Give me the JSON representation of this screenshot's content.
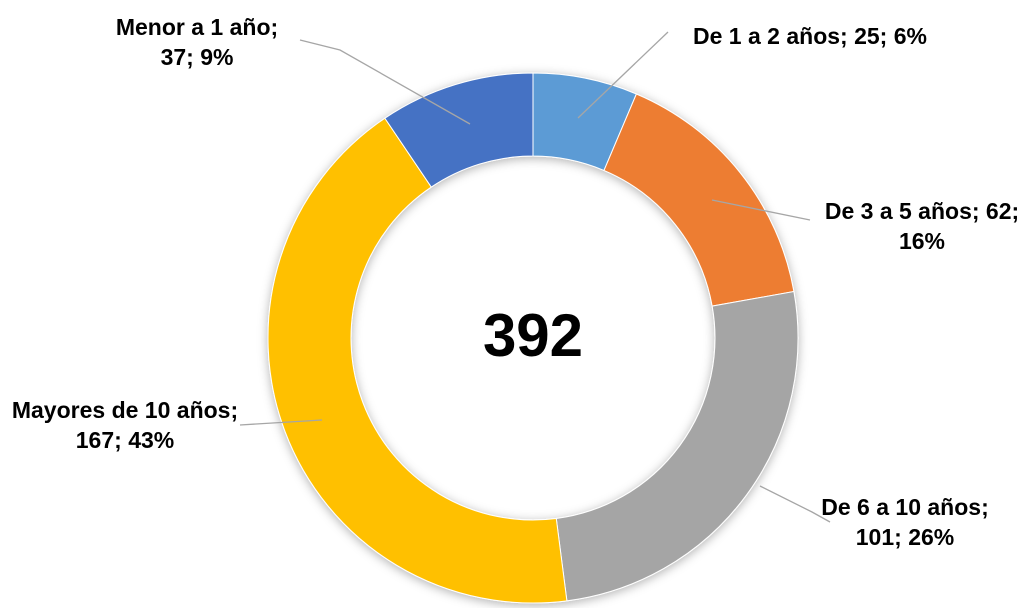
{
  "chart_data": {
    "type": "donut",
    "categories": [
      "De 1 a 2 años",
      "De 3 a 5 años",
      "De 6 a 10 años",
      "Mayores de 10 años",
      "Menor a 1 año"
    ],
    "values": [
      25,
      62,
      101,
      167,
      37
    ],
    "value_labels": [
      "De 1 a 2 años; 25; 6%",
      "De 3 a 5 años; 62; 16%",
      "De 6 a 10 años; 101; 26%",
      "Mayores de 10 años; 167; 43%",
      "Menor a 1 año; 37; 9%"
    ],
    "colors": [
      "#5b9bd5",
      "#ed7d31",
      "#a5a5a5",
      "#ffc000",
      "#4472c4"
    ],
    "center_text": "392"
  }
}
